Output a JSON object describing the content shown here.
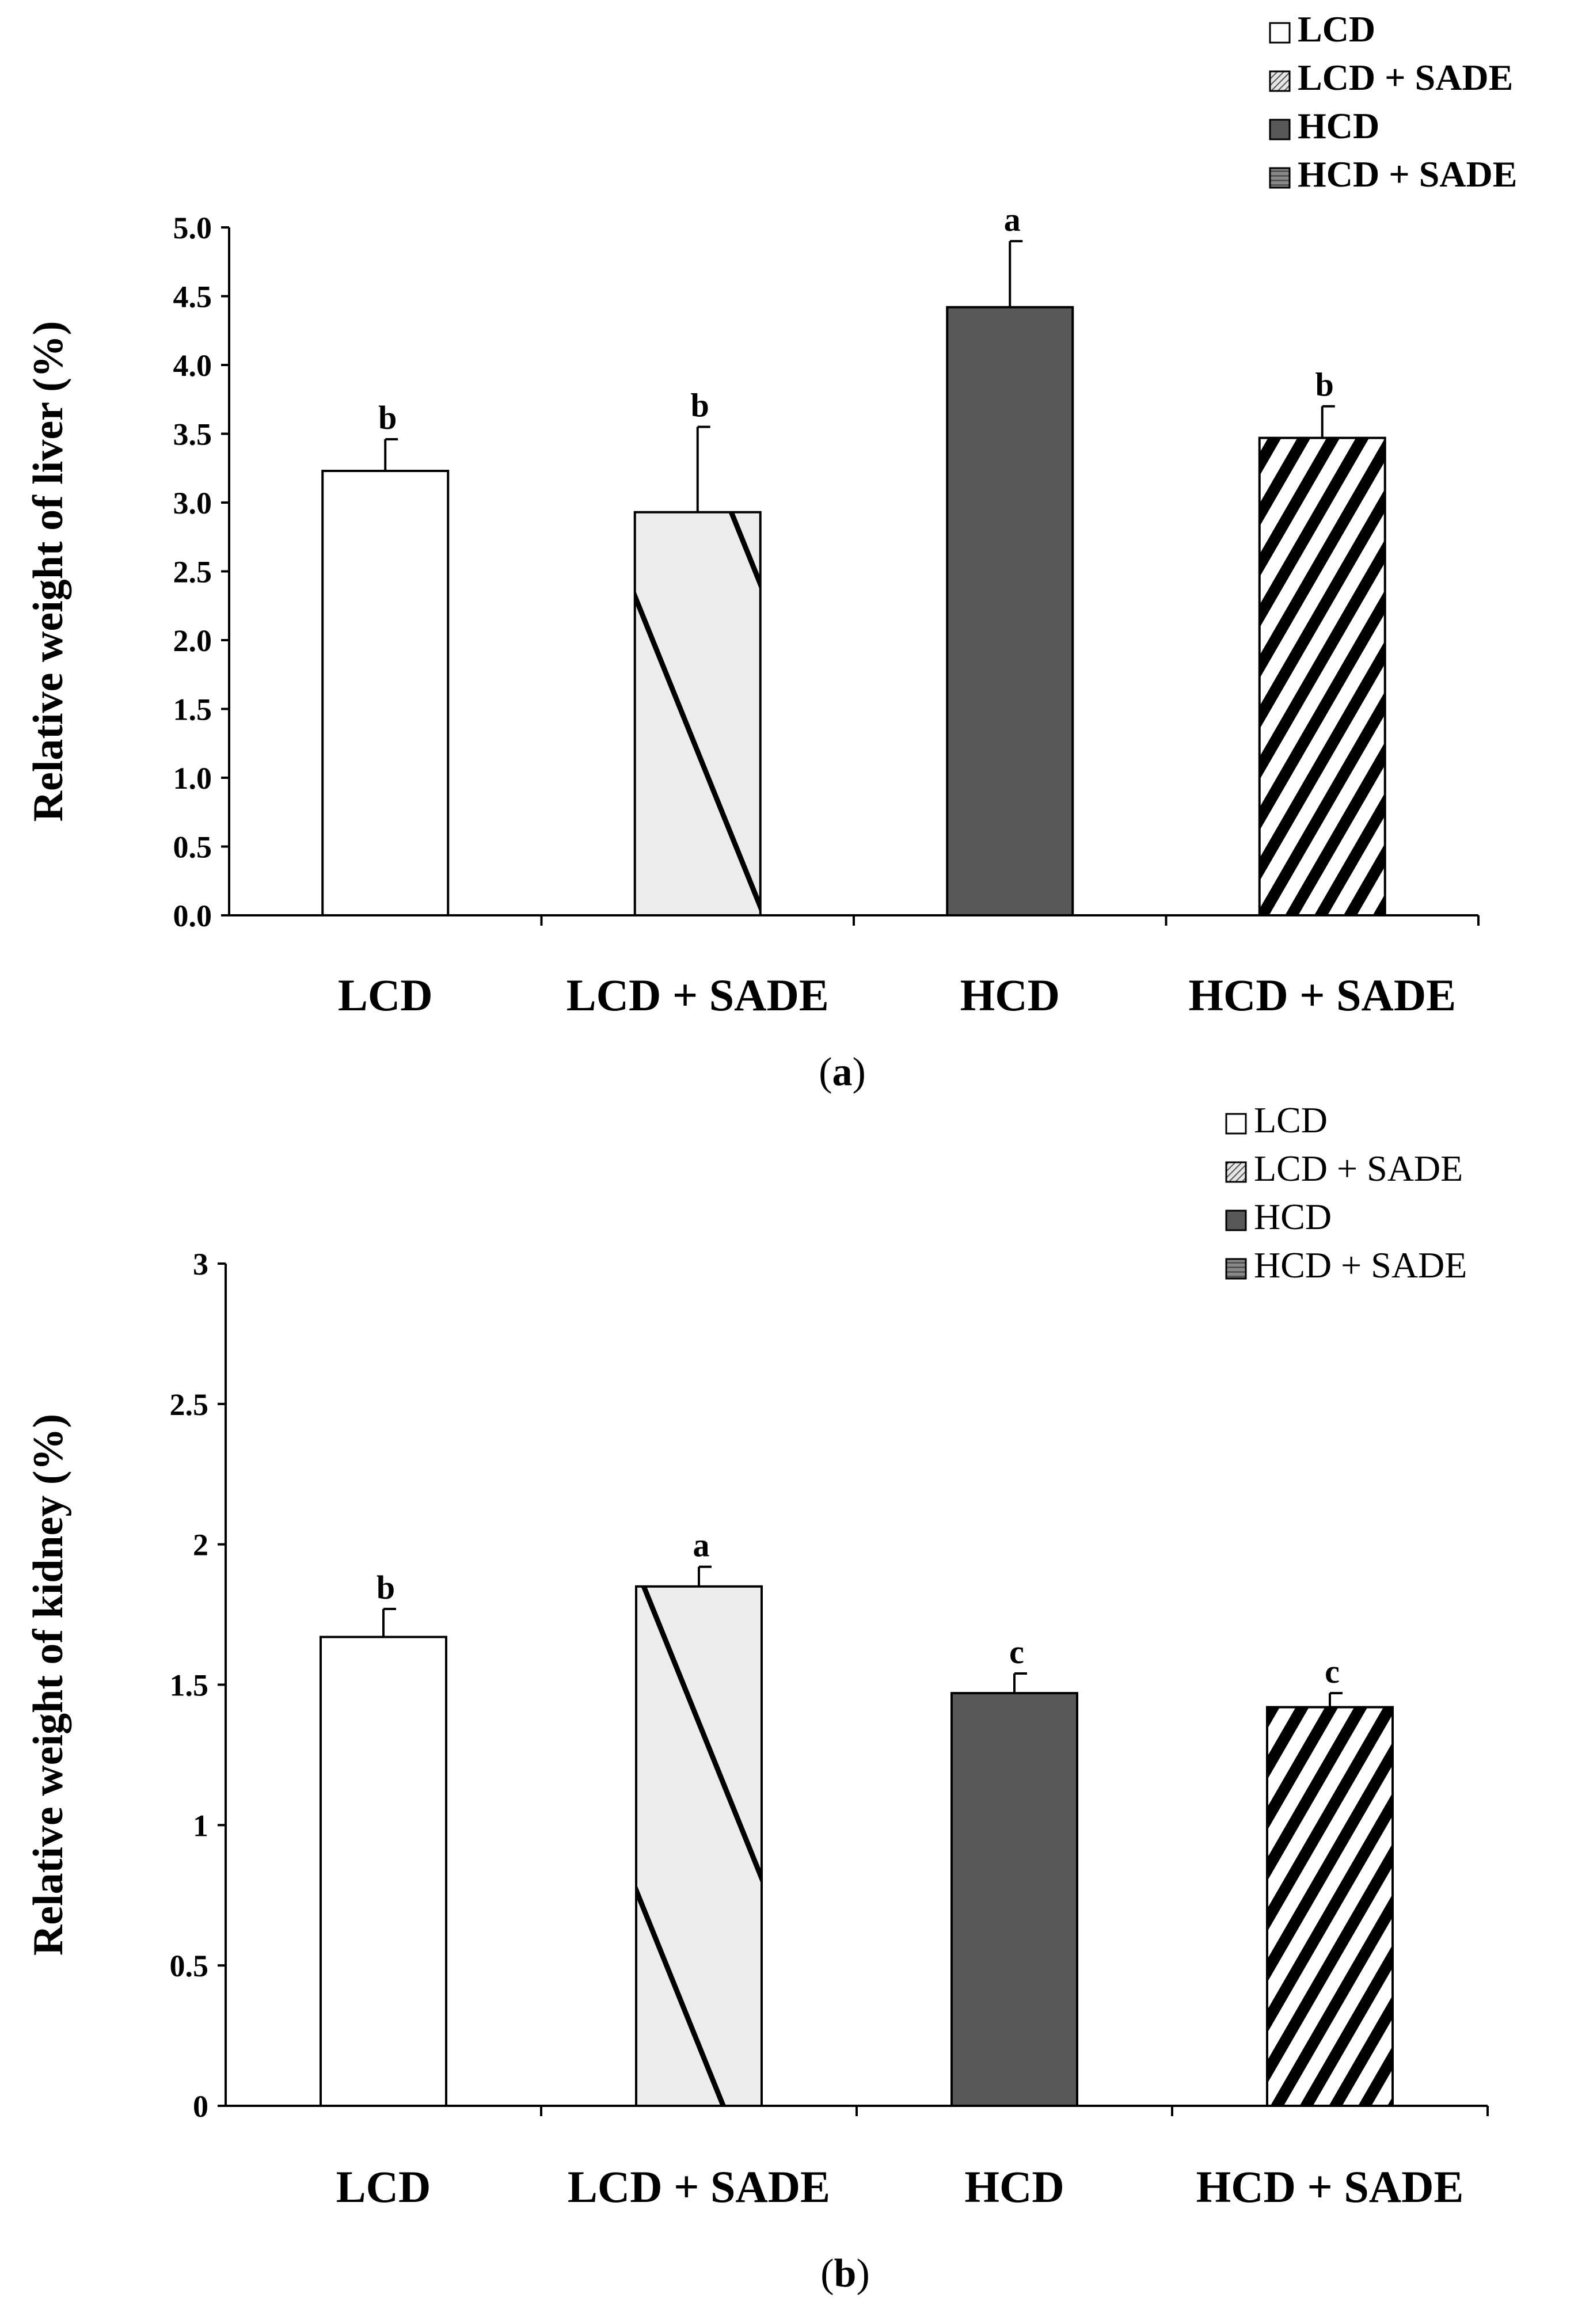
{
  "chart_data": [
    {
      "id": "a",
      "type": "bar",
      "caption": "a",
      "ylabel": "Relative weight of liver (%)",
      "xlabel": "",
      "ylim": [
        0,
        5
      ],
      "yticks": [
        "0.0",
        "0.5",
        "1.0",
        "1.5",
        "2.0",
        "2.5",
        "3.0",
        "3.5",
        "4.0",
        "4.5",
        "5.0"
      ],
      "categories": [
        "LCD",
        "LCD + SADE",
        "HCD",
        "HCD + SADE"
      ],
      "values": [
        3.23,
        2.93,
        4.42,
        3.47
      ],
      "errors": [
        0.23,
        0.62,
        0.48,
        0.23
      ],
      "significance": [
        "b",
        "b",
        "a",
        "b"
      ],
      "legend": [
        "LCD",
        "LCD + SADE",
        "HCD",
        "HCD + SADE"
      ],
      "legend_bold": true,
      "legend_position": "top-right"
    },
    {
      "id": "b",
      "type": "bar",
      "caption": "b",
      "ylabel": "Relative weight of kidney (%)",
      "xlabel": "",
      "ylim": [
        0,
        3
      ],
      "yticks": [
        "0",
        "0.5",
        "1",
        "1.5",
        "2",
        "2.5",
        "3"
      ],
      "categories": [
        "LCD",
        "LCD + SADE",
        "HCD",
        "HCD + SADE"
      ],
      "values": [
        1.67,
        1.85,
        1.47,
        1.42
      ],
      "errors": [
        0.1,
        0.07,
        0.07,
        0.05
      ],
      "significance": [
        "b",
        "a",
        "c",
        "c"
      ],
      "legend": [
        "LCD",
        "LCD + SADE",
        "HCD",
        "HCD + SADE"
      ],
      "legend_bold": false,
      "legend_position": "top-right"
    }
  ],
  "colors": {
    "lcd": "#ffffff",
    "lcd_sade_bg": "#ececec",
    "hcd": "#585858",
    "hcd_sade_bg": "#ffffff",
    "stripe": "#000000"
  }
}
